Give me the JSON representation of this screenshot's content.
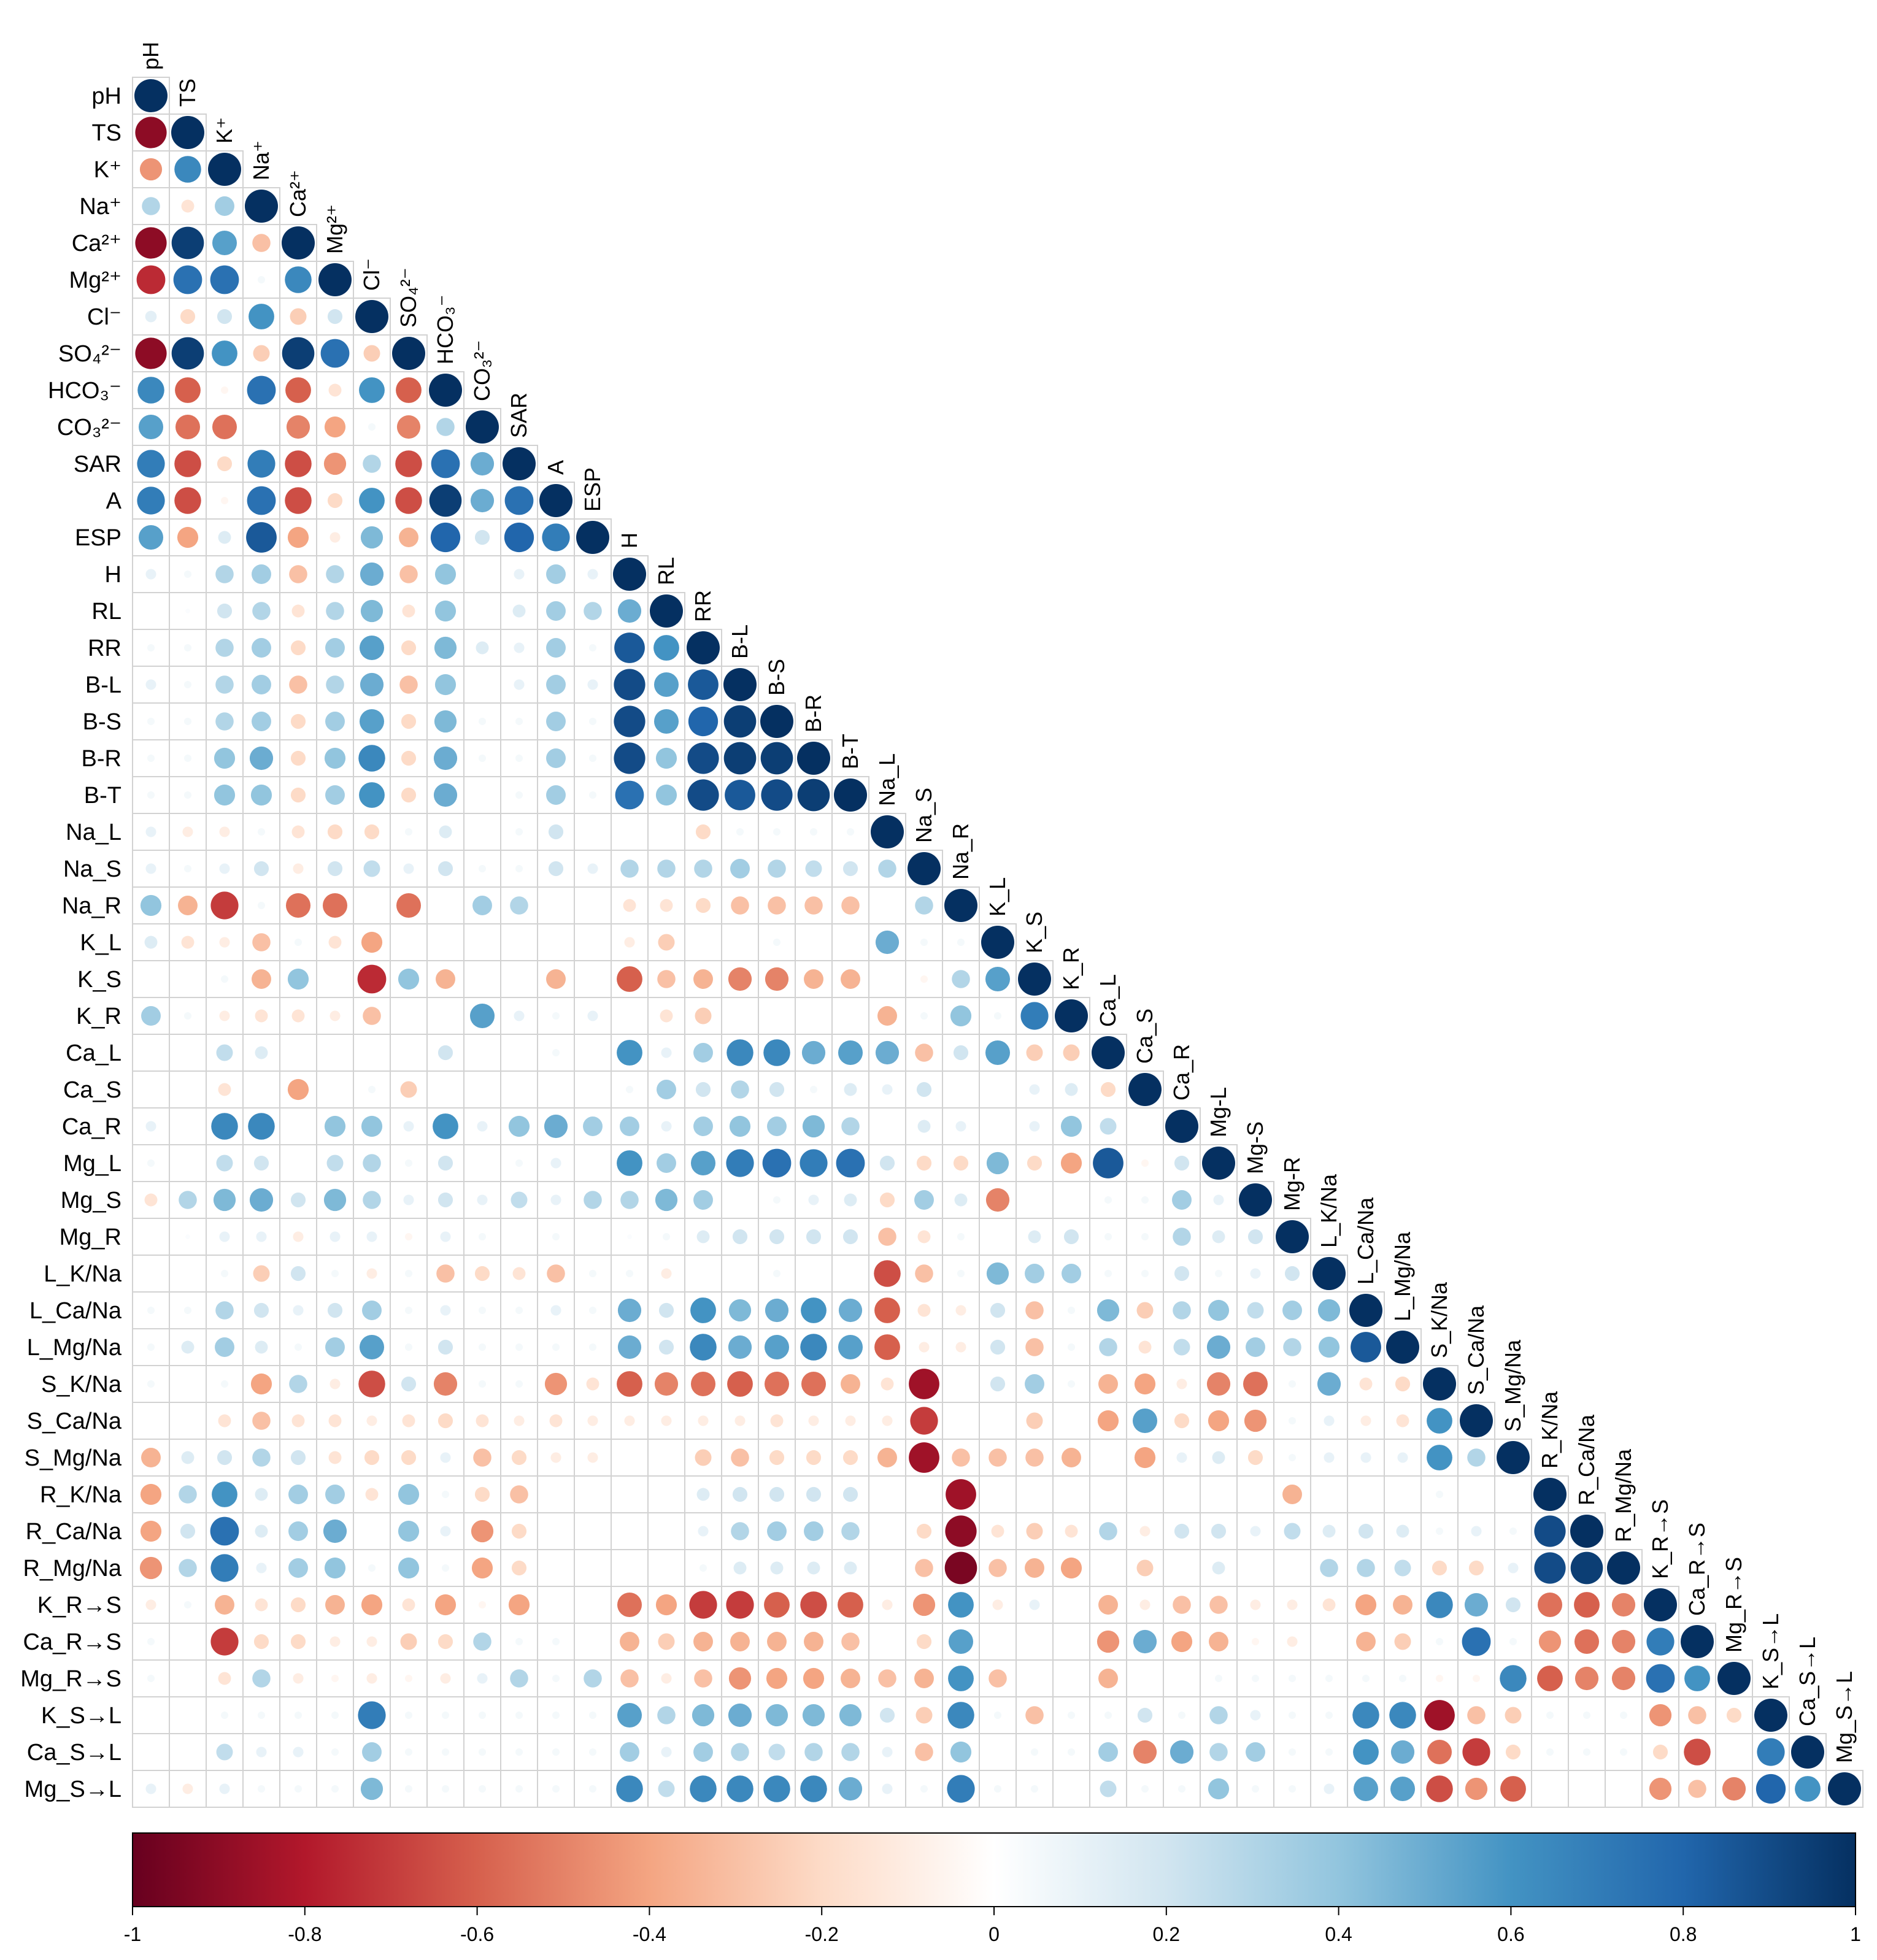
{
  "chart_data": {
    "type": "heatmap",
    "style": "correlogram-circles-lower-triangle",
    "title": "",
    "variables": [
      "pH",
      "TS",
      "K⁺",
      "Na⁺",
      "Ca²⁺",
      "Mg²⁺",
      "Cl⁻",
      "SO₄²⁻",
      "HCO₃⁻",
      "CO₃²⁻",
      "SAR",
      "A",
      "ESP",
      "H",
      "RL",
      "RR",
      "B-L",
      "B-S",
      "B-R",
      "B-T",
      "Na_L",
      "Na_S",
      "Na_R",
      "K_L",
      "K_S",
      "K_R",
      "Ca_L",
      "Ca_S",
      "Ca_R",
      "Mg_L",
      "Mg_S",
      "Mg_R",
      "L_K/Na",
      "L_Ca/Na",
      "L_Mg/Na",
      "S_K/Na",
      "S_Ca/Na",
      "S_Mg/Na",
      "R_K/Na",
      "R_Ca/Na",
      "R_Mg/Na",
      "K_R→S",
      "Ca_R→S",
      "Mg_R→S",
      "K_S→L",
      "Ca_S→L",
      "Mg_S→L"
    ],
    "column_labels": [
      "pH",
      "TS",
      "K⁺",
      "Na⁺",
      "Ca²⁺",
      "Mg²⁺",
      "Cl⁻",
      "SO₄²⁻",
      "HCO₃⁻",
      "CO₃²⁻",
      "SAR",
      "A",
      "ESP",
      "H",
      "RL",
      "RR",
      "B-L",
      "B-S",
      "B-R",
      "B-T",
      "Na_L",
      "Na_S",
      "Na_R",
      "K_L",
      "K_S",
      "K_R",
      "Ca_L",
      "Ca_S",
      "Ca_R",
      "Mg-L",
      "Mg-S",
      "Mg-R",
      "L_K/Na",
      "L_Ca/Na",
      "L_Mg/Na",
      "S_K/Na",
      "S_Ca/Na",
      "S_Mg/Na",
      "R_K/Na",
      "R_Ca/Na",
      "R_Mg/Na",
      "K_R→S",
      "Ca_R→S",
      "Mg_R→S",
      "K_S→L",
      "Ca_S→L",
      "Mg_S→L"
    ],
    "correlations": [
      [
        1
      ],
      [
        -0.9,
        1
      ],
      [
        -0.45,
        0.65,
        1
      ],
      [
        0.3,
        -0.15,
        0.35,
        1
      ],
      [
        -0.9,
        0.95,
        0.55,
        -0.3,
        1
      ],
      [
        -0.75,
        0.75,
        0.75,
        0.05,
        0.65,
        1
      ],
      [
        0.12,
        -0.2,
        0.2,
        0.6,
        -0.25,
        0.2,
        1
      ],
      [
        -0.9,
        0.95,
        0.6,
        -0.25,
        0.95,
        0.75,
        -0.25,
        1
      ],
      [
        0.65,
        -0.6,
        -0.05,
        0.75,
        -0.6,
        -0.15,
        0.6,
        -0.6,
        1
      ],
      [
        0.55,
        -0.55,
        -0.55,
        0,
        -0.5,
        -0.4,
        0.05,
        -0.5,
        0.3,
        1
      ],
      [
        0.7,
        -0.65,
        -0.2,
        0.7,
        -0.65,
        -0.45,
        0.3,
        -0.65,
        0.75,
        0.5,
        1
      ],
      [
        0.7,
        -0.65,
        -0.05,
        0.75,
        -0.65,
        -0.2,
        0.6,
        -0.65,
        0.95,
        0.5,
        0.75,
        1
      ],
      [
        0.55,
        -0.4,
        0.15,
        0.85,
        -0.4,
        -0.1,
        0.45,
        -0.35,
        0.8,
        0.2,
        0.8,
        0.7,
        1
      ],
      [
        0.1,
        0.05,
        0.3,
        0.35,
        -0.3,
        0.3,
        0.5,
        -0.3,
        0.4,
        0,
        0.1,
        0.35,
        0.1,
        1
      ],
      [
        0,
        0.02,
        0.2,
        0.3,
        -0.15,
        0.3,
        0.45,
        -0.15,
        0.4,
        0,
        0.15,
        0.35,
        0.3,
        0.5,
        1
      ],
      [
        0.05,
        0.05,
        0.3,
        0.35,
        -0.2,
        0.35,
        0.55,
        -0.2,
        0.45,
        0.15,
        0.1,
        0.35,
        0.05,
        0.85,
        0.6,
        1
      ],
      [
        0.1,
        0.05,
        0.3,
        0.35,
        -0.3,
        0.3,
        0.5,
        -0.3,
        0.4,
        0,
        0.1,
        0.35,
        0.1,
        0.9,
        0.55,
        0.85,
        1
      ],
      [
        0.05,
        0.05,
        0.3,
        0.35,
        -0.2,
        0.35,
        0.55,
        -0.2,
        0.45,
        0.05,
        0.05,
        0.35,
        0.05,
        0.9,
        0.55,
        0.8,
        0.95,
        1
      ],
      [
        0.05,
        0.05,
        0.4,
        0.5,
        -0.2,
        0.4,
        0.65,
        -0.2,
        0.5,
        0.05,
        0.05,
        0.35,
        0.05,
        0.9,
        0.4,
        0.9,
        0.95,
        0.95,
        1
      ],
      [
        0.05,
        0.05,
        0.4,
        0.4,
        -0.2,
        0.35,
        0.6,
        -0.2,
        0.5,
        0,
        0.05,
        0.35,
        0.05,
        0.75,
        0.4,
        0.9,
        0.85,
        0.9,
        0.95,
        1
      ],
      [
        0.1,
        -0.1,
        -0.1,
        0.05,
        -0.15,
        -0.2,
        -0.2,
        0.05,
        0.15,
        0,
        0.05,
        0.2,
        0,
        0,
        0,
        -0.2,
        0.05,
        0.05,
        0.05,
        0.05,
        1
      ],
      [
        0.1,
        0.05,
        0.1,
        0.2,
        -0.1,
        0.2,
        0.25,
        0.1,
        0.2,
        0.05,
        0.05,
        0.2,
        0.1,
        0.3,
        0.3,
        0.3,
        0.35,
        0.3,
        0.25,
        0.2,
        0.3,
        1
      ],
      [
        0.4,
        -0.35,
        -0.7,
        0.05,
        -0.55,
        -0.55,
        0,
        -0.55,
        0,
        0.35,
        0.3,
        0,
        0,
        -0.15,
        -0.15,
        -0.2,
        -0.3,
        -0.3,
        -0.3,
        -0.3,
        0,
        0.3,
        1
      ],
      [
        0.15,
        -0.15,
        -0.1,
        -0.3,
        0.05,
        -0.15,
        -0.4,
        0,
        0,
        0,
        0,
        0,
        0,
        -0.1,
        -0.25,
        0,
        0,
        0.05,
        0,
        0,
        0.5,
        0.05,
        0.05,
        1
      ],
      [
        0,
        0,
        0.05,
        -0.35,
        0.4,
        0,
        -0.75,
        0.4,
        -0.35,
        0,
        0,
        -0.35,
        0,
        -0.6,
        -0.3,
        -0.35,
        -0.5,
        -0.5,
        -0.35,
        -0.35,
        0,
        -0.05,
        0.3,
        0.55,
        1
      ],
      [
        0.35,
        0.05,
        -0.1,
        -0.15,
        -0.15,
        -0.1,
        -0.3,
        0,
        0,
        0.55,
        0.1,
        0.05,
        0.1,
        0,
        -0.15,
        -0.25,
        0,
        0,
        0,
        0,
        -0.35,
        0.05,
        0.4,
        0.05,
        0.7,
        1
      ],
      [
        0,
        0,
        0.25,
        0.15,
        0,
        0,
        0,
        0,
        0.2,
        0,
        0,
        0.05,
        0,
        0.6,
        0.1,
        0.35,
        0.65,
        0.65,
        0.5,
        0.55,
        0.5,
        -0.3,
        0.2,
        0.55,
        -0.25,
        -0.25,
        1
      ],
      [
        0,
        0,
        -0.15,
        0,
        -0.4,
        0,
        0.05,
        -0.25,
        0,
        0,
        0,
        0,
        0,
        0.05,
        0.35,
        0.2,
        0.3,
        0.2,
        0.05,
        0.15,
        0.1,
        0.2,
        0,
        0,
        0.1,
        0.15,
        -0.2,
        1
      ],
      [
        0.1,
        0,
        0.65,
        0.65,
        0,
        0.4,
        0.4,
        0.1,
        0.6,
        0.1,
        0.4,
        0.5,
        0.35,
        0.35,
        0.1,
        0.35,
        0.4,
        0.35,
        0.45,
        0.3,
        0,
        0.15,
        0.1,
        0,
        0.1,
        0.4,
        0.25,
        0,
        1
      ],
      [
        0.05,
        0,
        0.25,
        0.2,
        0,
        0.25,
        0.3,
        0.05,
        0.2,
        0,
        0.05,
        0.1,
        0,
        0.6,
        0.35,
        0.55,
        0.7,
        0.75,
        0.7,
        0.75,
        0.2,
        -0.2,
        -0.2,
        0.45,
        -0.2,
        -0.4,
        0.85,
        -0.05,
        0.2,
        1
      ],
      [
        -0.15,
        0.3,
        0.45,
        0.5,
        0.2,
        0.45,
        0.3,
        0.1,
        0.2,
        0.1,
        0.25,
        0.1,
        0.3,
        0.3,
        0.45,
        0.35,
        0,
        0.05,
        0.1,
        0.15,
        -0.2,
        0.35,
        0.15,
        -0.5,
        0,
        0,
        0.05,
        0.05,
        0.35,
        0.1,
        1
      ],
      [
        0,
        0.02,
        0.1,
        0.1,
        -0.1,
        0.1,
        0.1,
        -0.05,
        0.1,
        0.05,
        0,
        0.05,
        0,
        0.02,
        0.05,
        0.15,
        0.2,
        0.2,
        0.2,
        0.2,
        -0.3,
        -0.15,
        0.05,
        0,
        0.15,
        0.2,
        0.05,
        0.05,
        0.3,
        0.15,
        0.2,
        1
      ],
      [
        0,
        0,
        0.05,
        -0.25,
        0.2,
        0.05,
        -0.1,
        0.05,
        -0.3,
        -0.2,
        -0.15,
        -0.3,
        0.05,
        0.05,
        -0.1,
        0,
        0,
        0.05,
        0,
        0,
        -0.65,
        -0.3,
        0.05,
        0.45,
        0.35,
        0.35,
        0.05,
        0.05,
        0.2,
        0.05,
        0.1,
        0.2,
        1
      ],
      [
        0.05,
        0.05,
        0.3,
        0.2,
        0.1,
        0.2,
        0.35,
        0.05,
        0.1,
        0.05,
        0.05,
        0.1,
        0.05,
        0.5,
        0.2,
        0.6,
        0.45,
        0.5,
        0.6,
        0.5,
        -0.6,
        -0.15,
        -0.1,
        0.2,
        -0.3,
        0.05,
        0.45,
        -0.25,
        0.3,
        0.4,
        0.25,
        0.35,
        0.45,
        1
      ],
      [
        0.05,
        0.15,
        0.35,
        0.15,
        0.05,
        0.35,
        0.55,
        0.05,
        0.2,
        0.05,
        0.05,
        0.05,
        0.05,
        0.5,
        0.2,
        0.65,
        0.5,
        0.55,
        0.65,
        0.55,
        -0.6,
        -0.1,
        -0.1,
        0.2,
        -0.3,
        0.05,
        0.3,
        -0.15,
        0.25,
        0.5,
        0.35,
        0.3,
        0.4,
        0.85,
        1
      ],
      [
        0.05,
        0,
        0.05,
        -0.4,
        0.3,
        -0.1,
        -0.65,
        0.2,
        -0.5,
        0.05,
        0.05,
        -0.45,
        -0.15,
        -0.6,
        -0.5,
        -0.55,
        -0.6,
        -0.55,
        -0.55,
        -0.35,
        -0.15,
        -0.85,
        0,
        0.2,
        0.35,
        0.05,
        -0.35,
        -0.4,
        -0.1,
        -0.5,
        -0.55,
        0.05,
        0.5,
        -0.15,
        -0.2,
        1
      ],
      [
        0,
        0,
        -0.15,
        -0.3,
        -0.15,
        -0.15,
        -0.1,
        -0.15,
        -0.2,
        -0.15,
        -0.1,
        -0.15,
        -0.1,
        -0.1,
        -0.1,
        -0.1,
        -0.1,
        -0.15,
        -0.1,
        -0.1,
        -0.1,
        -0.7,
        0,
        0,
        -0.25,
        0,
        -0.4,
        0.55,
        -0.2,
        -0.4,
        -0.45,
        0.05,
        0.1,
        -0.1,
        -0.15,
        0.6,
        1
      ],
      [
        -0.35,
        0.15,
        0.2,
        0.3,
        0.2,
        -0.15,
        -0.2,
        -0.2,
        0.1,
        -0.3,
        -0.2,
        -0.1,
        -0.1,
        0,
        0,
        -0.25,
        -0.3,
        -0.2,
        -0.2,
        -0.2,
        -0.35,
        -0.85,
        -0.3,
        -0.3,
        -0.3,
        -0.35,
        0,
        -0.4,
        0.1,
        0.15,
        -0.2,
        0.05,
        0.1,
        0.1,
        0.1,
        0.6,
        0.3,
        1
      ],
      [
        -0.4,
        0.3,
        0.6,
        0.15,
        0.35,
        0.35,
        -0.15,
        0.4,
        0.05,
        -0.2,
        -0.3,
        0,
        0,
        0,
        0,
        0.15,
        0.2,
        0.2,
        0.2,
        0.2,
        0,
        0,
        -0.85,
        0,
        0,
        0,
        0,
        0,
        0,
        0,
        0,
        -0.35,
        0,
        0,
        0,
        0.05,
        0,
        0,
        1
      ],
      [
        -0.4,
        0.2,
        0.75,
        0.15,
        0.35,
        0.5,
        0,
        0.4,
        0.1,
        -0.45,
        -0.2,
        0,
        0,
        0,
        0,
        0.1,
        0.3,
        0.35,
        0.35,
        0.3,
        0,
        -0.2,
        -0.9,
        -0.15,
        -0.25,
        -0.15,
        0.3,
        -0.1,
        0.2,
        0.2,
        0.1,
        0.25,
        0.15,
        0.2,
        0.15,
        0.05,
        0.1,
        0.05,
        0.9,
        1
      ],
      [
        -0.45,
        0.3,
        0.7,
        0.1,
        0.35,
        0.4,
        0.05,
        0.4,
        0.05,
        -0.4,
        -0.2,
        0,
        0,
        0,
        0,
        0.05,
        0.15,
        0.15,
        0.15,
        0.15,
        0,
        -0.3,
        -0.95,
        -0.3,
        -0.35,
        -0.4,
        0,
        -0.25,
        0,
        0.15,
        0,
        0,
        0.3,
        0.3,
        0.25,
        -0.2,
        -0.2,
        0.1,
        0.9,
        0.95,
        1
      ],
      [
        -0.1,
        0.05,
        -0.35,
        -0.15,
        -0.2,
        -0.35,
        -0.4,
        -0.15,
        -0.4,
        -0.05,
        -0.4,
        0,
        0,
        -0.55,
        -0.4,
        -0.7,
        -0.7,
        -0.6,
        -0.65,
        -0.6,
        -0.1,
        -0.45,
        0.6,
        -0.1,
        0.1,
        0,
        -0.35,
        -0.1,
        -0.3,
        -0.3,
        -0.1,
        -0.1,
        -0.15,
        -0.4,
        -0.35,
        0.65,
        0.5,
        0.2,
        -0.55,
        -0.6,
        -0.5,
        1
      ],
      [
        0.05,
        0,
        -0.7,
        -0.2,
        -0.2,
        -0.1,
        -0.1,
        -0.25,
        -0.2,
        0.3,
        0.05,
        0.05,
        0,
        -0.35,
        -0.25,
        -0.35,
        -0.35,
        -0.35,
        -0.35,
        -0.3,
        0,
        -0.2,
        0.55,
        0,
        0,
        0,
        -0.45,
        0.5,
        -0.4,
        -0.35,
        -0.05,
        -0.1,
        0,
        -0.35,
        -0.25,
        0.05,
        0.75,
        0.05,
        -0.45,
        -0.55,
        -0.5,
        0.7,
        1
      ],
      [
        0.05,
        0,
        -0.15,
        0.3,
        -0.1,
        -0.05,
        -0.1,
        -0.05,
        -0.1,
        0.1,
        0.3,
        0.05,
        0.3,
        -0.3,
        -0.1,
        -0.3,
        -0.45,
        -0.4,
        -0.4,
        -0.35,
        -0.3,
        -0.35,
        0.6,
        -0.3,
        0,
        0,
        -0.35,
        0,
        0,
        0.05,
        0.05,
        0.05,
        0.05,
        0.05,
        0.05,
        -0.05,
        -0.05,
        0.65,
        -0.6,
        -0.5,
        -0.5,
        0.75,
        0.6,
        1
      ],
      [
        0,
        0,
        0.05,
        0.05,
        0.05,
        0.05,
        0.7,
        0.05,
        0.05,
        0.05,
        0.05,
        0.05,
        0.05,
        0.55,
        0.3,
        0.45,
        0.5,
        0.45,
        0.45,
        0.45,
        0.2,
        -0.25,
        0.65,
        0.05,
        -0.3,
        0.05,
        0.05,
        0.2,
        0.05,
        0.3,
        0.1,
        0.05,
        0.05,
        0.65,
        0.65,
        -0.85,
        -0.3,
        -0.25,
        0.05,
        0.05,
        0.05,
        -0.45,
        -0.3,
        -0.2,
        1
      ],
      [
        0,
        0,
        0.25,
        0.1,
        0.1,
        0.05,
        0.35,
        0.05,
        0.05,
        0.05,
        0.05,
        0.05,
        0.05,
        0.35,
        0.1,
        0.35,
        0.3,
        0.25,
        0.3,
        0.3,
        0.1,
        -0.3,
        0.4,
        0,
        0.05,
        0.05,
        0.35,
        -0.5,
        0.5,
        0.3,
        0.35,
        0.05,
        0.05,
        0.6,
        0.5,
        -0.55,
        -0.7,
        -0.2,
        0.05,
        0.05,
        0.05,
        -0.2,
        -0.65,
        0,
        0.7,
        1
      ],
      [
        0.1,
        -0.1,
        0.1,
        0.05,
        0.05,
        0.05,
        0.45,
        0.05,
        0.05,
        0.05,
        0.05,
        0.05,
        0.05,
        0.65,
        0.25,
        0.65,
        0.65,
        0.65,
        0.65,
        0.5,
        0.1,
        0.05,
        0.7,
        0.05,
        0.05,
        0,
        0.25,
        0.05,
        0.05,
        0.4,
        0.05,
        0.05,
        0.1,
        0.55,
        0.55,
        -0.65,
        -0.45,
        -0.6,
        0,
        0,
        0,
        -0.45,
        -0.3,
        -0.5,
        0.8,
        0.6,
        1
      ]
    ],
    "color_scale": {
      "min": -1,
      "max": 1,
      "stops": [
        "#67001F",
        "#B2182B",
        "#D6604D",
        "#F4A582",
        "#FDDBC7",
        "#FFFFFF",
        "#D1E5F0",
        "#92C5DE",
        "#4393C3",
        "#2166AC",
        "#053061"
      ]
    },
    "colorbar": {
      "ticks": [
        -1,
        -0.8,
        -0.6,
        -0.4,
        -0.2,
        0,
        0.2,
        0.4,
        0.6,
        0.8,
        1
      ],
      "tick_labels": [
        "-1",
        "-0.8",
        "-0.6",
        "-0.4",
        "-0.2",
        "0",
        "0.2",
        "0.4",
        "0.6",
        "0.8",
        "1"
      ]
    },
    "xlabel": "",
    "ylabel": ""
  }
}
